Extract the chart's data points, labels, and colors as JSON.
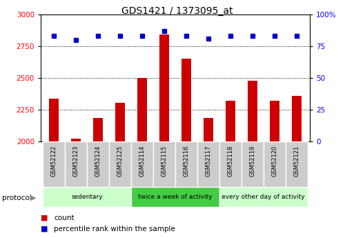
{
  "title": "GDS1421 / 1373095_at",
  "samples": [
    "GSM52122",
    "GSM52123",
    "GSM52124",
    "GSM52125",
    "GSM52114",
    "GSM52115",
    "GSM52116",
    "GSM52117",
    "GSM52118",
    "GSM52119",
    "GSM52120",
    "GSM52121"
  ],
  "counts": [
    2340,
    2025,
    2185,
    2305,
    2500,
    2840,
    2650,
    2185,
    2320,
    2480,
    2320,
    2360
  ],
  "percentiles": [
    83,
    80,
    83,
    83,
    83,
    87,
    83,
    81,
    83,
    83,
    83,
    83
  ],
  "group_configs": [
    {
      "start": 0,
      "end": 4,
      "color": "#ccffcc",
      "label": "sedentary"
    },
    {
      "start": 4,
      "end": 8,
      "color": "#44cc44",
      "label": "twice a week of activity"
    },
    {
      "start": 8,
      "end": 12,
      "color": "#ccffcc",
      "label": "every other day of activity"
    }
  ],
  "ylim_left": [
    2000,
    3000
  ],
  "ylim_right": [
    0,
    100
  ],
  "yticks_left": [
    2000,
    2250,
    2500,
    2750,
    3000
  ],
  "yticks_right": [
    0,
    25,
    50,
    75,
    100
  ],
  "bar_color": "#cc0000",
  "dot_color": "#0000cc",
  "sample_box_color": "#cccccc",
  "label_count": "count",
  "label_percentile": "percentile rank within the sample",
  "protocol_label": "protocol"
}
